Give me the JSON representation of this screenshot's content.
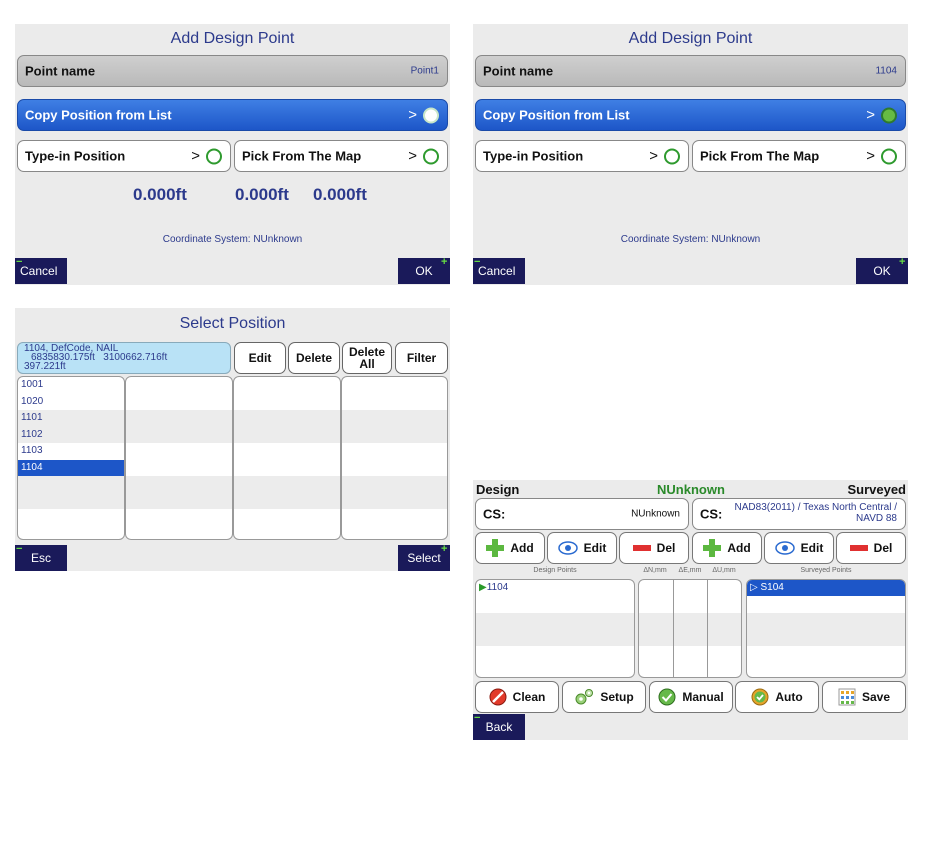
{
  "panel1": {
    "title": "Add Design Point",
    "point_name_label": "Point name",
    "point_name_value": "Point1",
    "copy_label": "Copy Position from List",
    "typein_label": "Type-in Position",
    "pick_label": "Pick From The Map",
    "arrow": ">",
    "values": [
      "0.000ft",
      "0.000ft",
      "0.000ft"
    ],
    "coord_system": "Coordinate System: NUnknown",
    "cancel": "Cancel",
    "ok": "OK"
  },
  "panel2": {
    "title": "Add Design Point",
    "point_name_label": "Point name",
    "point_name_value": "1104",
    "copy_label": "Copy Position from List",
    "typein_label": "Type-in Position",
    "pick_label": "Pick From The Map",
    "arrow": ">",
    "coord_system": "Coordinate System: NUnknown",
    "cancel": "Cancel",
    "ok": "OK"
  },
  "panel3": {
    "title": "Select Position",
    "info_line1": "1104, DefCode, NAIL",
    "info_line2": "6835830.175ft   3100662.716ft",
    "info_line3": "397.221ft",
    "edit": "Edit",
    "delete": "Delete",
    "delete_all_1": "Delete",
    "delete_all_2": "All",
    "filter": "Filter",
    "items": [
      "1001",
      "1020",
      "1101",
      "1102",
      "1103",
      "1104"
    ],
    "esc": "Esc",
    "select": "Select"
  },
  "panel4": {
    "design": "Design",
    "center": "NUnknown",
    "surveyed": "Surveyed",
    "cs_label": "CS:",
    "cs_left_value": "NUnknown",
    "cs_right_line1": "NAD83(2011) / Texas North Central /",
    "cs_right_line2": "NAVD 88",
    "add": "Add",
    "edit": "Edit",
    "del": "Del",
    "design_points_header": "Design Points",
    "dn_header": "ΔN,mm",
    "de_header": "ΔE,mm",
    "du_header": "ΔU,mm",
    "surveyed_points_header": "Surveyed Points",
    "design_item": "1104",
    "surveyed_item": "S104",
    "clean": "Clean",
    "setup": "Setup",
    "manual": "Manual",
    "auto": "Auto",
    "save": "Save",
    "back": "Back"
  }
}
